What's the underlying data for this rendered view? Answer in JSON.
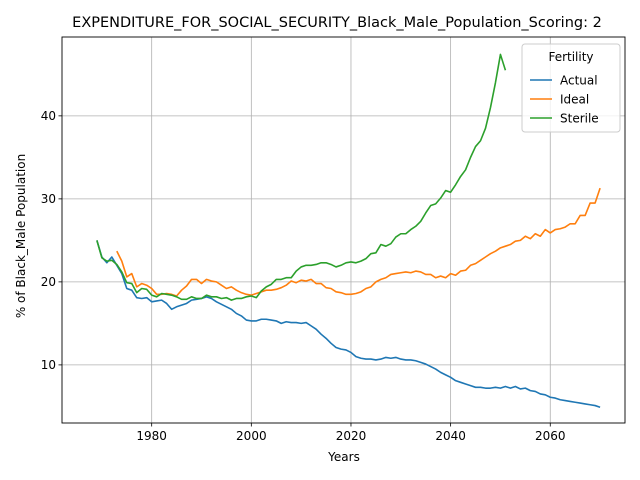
{
  "chart_data": {
    "type": "line",
    "title": "EXPENDITURE_FOR_SOCIAL_SECURITY_Black_Male_Population_Scoring: 2",
    "xlabel": "Years",
    "ylabel": "% of Black_Male Population",
    "xlim": [
      1962,
      2075
    ],
    "ylim": [
      3,
      49.5
    ],
    "xticks": [
      1980,
      2000,
      2020,
      2040,
      2060
    ],
    "yticks": [
      10,
      20,
      30,
      40
    ],
    "grid": true,
    "legend": {
      "title": "Fertility",
      "placement": "top-right"
    },
    "series": [
      {
        "name": "Actual",
        "color": "#1f77b4",
        "points": [
          [
            1969,
            25.0
          ],
          [
            1970,
            23.0
          ],
          [
            1971,
            22.3
          ],
          [
            1972,
            23.0
          ],
          [
            1973,
            22.0
          ],
          [
            1974,
            21.0
          ],
          [
            1975,
            19.2
          ],
          [
            1976,
            19.0
          ],
          [
            1977,
            18.1
          ],
          [
            1978,
            18.0
          ],
          [
            1979,
            18.1
          ],
          [
            1980,
            17.6
          ],
          [
            1981,
            17.7
          ],
          [
            1982,
            17.8
          ],
          [
            1983,
            17.4
          ],
          [
            1984,
            16.7
          ],
          [
            1985,
            17.0
          ],
          [
            1986,
            17.2
          ],
          [
            1987,
            17.4
          ],
          [
            1988,
            17.8
          ],
          [
            1989,
            17.9
          ],
          [
            1990,
            18.0
          ],
          [
            1991,
            18.2
          ],
          [
            1992,
            18.0
          ],
          [
            1993,
            17.6
          ],
          [
            1994,
            17.3
          ],
          [
            1995,
            17.0
          ],
          [
            1996,
            16.7
          ],
          [
            1997,
            16.2
          ],
          [
            1998,
            15.9
          ],
          [
            1999,
            15.4
          ],
          [
            2000,
            15.3
          ],
          [
            2001,
            15.3
          ],
          [
            2002,
            15.5
          ],
          [
            2003,
            15.5
          ],
          [
            2004,
            15.4
          ],
          [
            2005,
            15.3
          ],
          [
            2006,
            15.0
          ],
          [
            2007,
            15.2
          ],
          [
            2008,
            15.1
          ],
          [
            2009,
            15.1
          ],
          [
            2010,
            15.0
          ],
          [
            2011,
            15.1
          ],
          [
            2012,
            14.7
          ],
          [
            2013,
            14.3
          ],
          [
            2014,
            13.7
          ],
          [
            2015,
            13.2
          ],
          [
            2016,
            12.6
          ],
          [
            2017,
            12.1
          ],
          [
            2018,
            11.9
          ],
          [
            2019,
            11.8
          ],
          [
            2020,
            11.5
          ],
          [
            2021,
            11.0
          ],
          [
            2022,
            10.8
          ],
          [
            2023,
            10.7
          ],
          [
            2024,
            10.7
          ],
          [
            2025,
            10.6
          ],
          [
            2026,
            10.7
          ],
          [
            2027,
            10.9
          ],
          [
            2028,
            10.8
          ],
          [
            2029,
            10.9
          ],
          [
            2030,
            10.7
          ],
          [
            2031,
            10.6
          ],
          [
            2032,
            10.6
          ],
          [
            2033,
            10.5
          ],
          [
            2034,
            10.3
          ],
          [
            2035,
            10.1
          ],
          [
            2036,
            9.8
          ],
          [
            2037,
            9.5
          ],
          [
            2038,
            9.1
          ],
          [
            2039,
            8.8
          ],
          [
            2040,
            8.5
          ],
          [
            2041,
            8.1
          ],
          [
            2042,
            7.9
          ],
          [
            2043,
            7.7
          ],
          [
            2044,
            7.5
          ],
          [
            2045,
            7.3
          ],
          [
            2046,
            7.3
          ],
          [
            2047,
            7.2
          ],
          [
            2048,
            7.2
          ],
          [
            2049,
            7.3
          ],
          [
            2050,
            7.2
          ],
          [
            2051,
            7.4
          ],
          [
            2052,
            7.2
          ],
          [
            2053,
            7.4
          ],
          [
            2054,
            7.1
          ],
          [
            2055,
            7.2
          ],
          [
            2056,
            6.9
          ],
          [
            2057,
            6.8
          ],
          [
            2058,
            6.5
          ],
          [
            2059,
            6.4
          ],
          [
            2060,
            6.1
          ],
          [
            2061,
            6.0
          ],
          [
            2062,
            5.8
          ],
          [
            2063,
            5.7
          ],
          [
            2064,
            5.6
          ],
          [
            2065,
            5.5
          ],
          [
            2066,
            5.4
          ],
          [
            2067,
            5.3
          ],
          [
            2068,
            5.2
          ],
          [
            2069,
            5.1
          ],
          [
            2070,
            4.9
          ]
        ]
      },
      {
        "name": "Ideal",
        "color": "#ff7f0e",
        "points": [
          [
            1973,
            23.7
          ],
          [
            1974,
            22.5
          ],
          [
            1975,
            20.6
          ],
          [
            1976,
            21.0
          ],
          [
            1977,
            19.4
          ],
          [
            1978,
            19.8
          ],
          [
            1979,
            19.6
          ],
          [
            1980,
            19.2
          ],
          [
            1981,
            18.5
          ],
          [
            1982,
            18.5
          ],
          [
            1983,
            18.6
          ],
          [
            1984,
            18.5
          ],
          [
            1985,
            18.3
          ],
          [
            1986,
            19.0
          ],
          [
            1987,
            19.5
          ],
          [
            1988,
            20.3
          ],
          [
            1989,
            20.3
          ],
          [
            1990,
            19.8
          ],
          [
            1991,
            20.3
          ],
          [
            1992,
            20.1
          ],
          [
            1993,
            20.0
          ],
          [
            1994,
            19.6
          ],
          [
            1995,
            19.2
          ],
          [
            1996,
            19.4
          ],
          [
            1997,
            19.0
          ],
          [
            1998,
            18.7
          ],
          [
            1999,
            18.5
          ],
          [
            2000,
            18.4
          ],
          [
            2001,
            18.6
          ],
          [
            2002,
            18.8
          ],
          [
            2003,
            19.0
          ],
          [
            2004,
            19.0
          ],
          [
            2005,
            19.1
          ],
          [
            2006,
            19.3
          ],
          [
            2007,
            19.6
          ],
          [
            2008,
            20.1
          ],
          [
            2009,
            19.9
          ],
          [
            2010,
            20.2
          ],
          [
            2011,
            20.1
          ],
          [
            2012,
            20.3
          ],
          [
            2013,
            19.8
          ],
          [
            2014,
            19.8
          ],
          [
            2015,
            19.3
          ],
          [
            2016,
            19.2
          ],
          [
            2017,
            18.8
          ],
          [
            2018,
            18.7
          ],
          [
            2019,
            18.5
          ],
          [
            2020,
            18.5
          ],
          [
            2021,
            18.6
          ],
          [
            2022,
            18.8
          ],
          [
            2023,
            19.2
          ],
          [
            2024,
            19.4
          ],
          [
            2025,
            20.0
          ],
          [
            2026,
            20.3
          ],
          [
            2027,
            20.5
          ],
          [
            2028,
            20.9
          ],
          [
            2029,
            21.0
          ],
          [
            2030,
            21.1
          ],
          [
            2031,
            21.2
          ],
          [
            2032,
            21.1
          ],
          [
            2033,
            21.3
          ],
          [
            2034,
            21.2
          ],
          [
            2035,
            20.9
          ],
          [
            2036,
            20.9
          ],
          [
            2037,
            20.5
          ],
          [
            2038,
            20.7
          ],
          [
            2039,
            20.5
          ],
          [
            2040,
            21.0
          ],
          [
            2041,
            20.8
          ],
          [
            2042,
            21.3
          ],
          [
            2043,
            21.4
          ],
          [
            2044,
            22.0
          ],
          [
            2045,
            22.2
          ],
          [
            2046,
            22.6
          ],
          [
            2047,
            23.0
          ],
          [
            2048,
            23.4
          ],
          [
            2049,
            23.7
          ],
          [
            2050,
            24.1
          ],
          [
            2051,
            24.3
          ],
          [
            2052,
            24.5
          ],
          [
            2053,
            24.9
          ],
          [
            2054,
            25.0
          ],
          [
            2055,
            25.5
          ],
          [
            2056,
            25.2
          ],
          [
            2057,
            25.8
          ],
          [
            2058,
            25.5
          ],
          [
            2059,
            26.3
          ],
          [
            2060,
            25.9
          ],
          [
            2061,
            26.3
          ],
          [
            2062,
            26.4
          ],
          [
            2063,
            26.6
          ],
          [
            2064,
            27.0
          ],
          [
            2065,
            27.0
          ],
          [
            2066,
            28.0
          ],
          [
            2067,
            28.0
          ],
          [
            2068,
            29.5
          ],
          [
            2069,
            29.5
          ],
          [
            2070,
            31.3
          ]
        ]
      },
      {
        "name": "Sterile",
        "color": "#2ca02c",
        "points": [
          [
            1969,
            25.0
          ],
          [
            1970,
            22.9
          ],
          [
            1971,
            22.5
          ],
          [
            1972,
            22.6
          ],
          [
            1973,
            22.1
          ],
          [
            1974,
            21.2
          ],
          [
            1975,
            19.9
          ],
          [
            1976,
            19.8
          ],
          [
            1977,
            18.7
          ],
          [
            1978,
            19.2
          ],
          [
            1979,
            19.1
          ],
          [
            1980,
            18.4
          ],
          [
            1981,
            18.2
          ],
          [
            1982,
            18.6
          ],
          [
            1983,
            18.5
          ],
          [
            1984,
            18.4
          ],
          [
            1985,
            18.2
          ],
          [
            1986,
            17.9
          ],
          [
            1987,
            17.9
          ],
          [
            1988,
            18.2
          ],
          [
            1989,
            18.0
          ],
          [
            1990,
            18.0
          ],
          [
            1991,
            18.4
          ],
          [
            1992,
            18.2
          ],
          [
            1993,
            18.2
          ],
          [
            1994,
            18.0
          ],
          [
            1995,
            18.1
          ],
          [
            1996,
            17.8
          ],
          [
            1997,
            18.0
          ],
          [
            1998,
            18.0
          ],
          [
            1999,
            18.2
          ],
          [
            2000,
            18.3
          ],
          [
            2001,
            18.1
          ],
          [
            2002,
            18.9
          ],
          [
            2003,
            19.4
          ],
          [
            2004,
            19.7
          ],
          [
            2005,
            20.3
          ],
          [
            2006,
            20.3
          ],
          [
            2007,
            20.5
          ],
          [
            2008,
            20.5
          ],
          [
            2009,
            21.3
          ],
          [
            2010,
            21.8
          ],
          [
            2011,
            22.0
          ],
          [
            2012,
            22.0
          ],
          [
            2013,
            22.1
          ],
          [
            2014,
            22.3
          ],
          [
            2015,
            22.3
          ],
          [
            2016,
            22.1
          ],
          [
            2017,
            21.8
          ],
          [
            2018,
            22.0
          ],
          [
            2019,
            22.3
          ],
          [
            2020,
            22.4
          ],
          [
            2021,
            22.3
          ],
          [
            2022,
            22.5
          ],
          [
            2023,
            22.8
          ],
          [
            2024,
            23.4
          ],
          [
            2025,
            23.5
          ],
          [
            2026,
            24.5
          ],
          [
            2027,
            24.3
          ],
          [
            2028,
            24.6
          ],
          [
            2029,
            25.4
          ],
          [
            2030,
            25.8
          ],
          [
            2031,
            25.8
          ],
          [
            2032,
            26.3
          ],
          [
            2033,
            26.7
          ],
          [
            2034,
            27.3
          ],
          [
            2035,
            28.3
          ],
          [
            2036,
            29.2
          ],
          [
            2037,
            29.4
          ],
          [
            2038,
            30.1
          ],
          [
            2039,
            31.0
          ],
          [
            2040,
            30.8
          ],
          [
            2041,
            31.7
          ],
          [
            2042,
            32.7
          ],
          [
            2043,
            33.5
          ],
          [
            2044,
            35.0
          ],
          [
            2045,
            36.3
          ],
          [
            2046,
            37.0
          ],
          [
            2047,
            38.5
          ],
          [
            2048,
            41.0
          ],
          [
            2049,
            44.0
          ],
          [
            2050,
            47.4
          ],
          [
            2051,
            45.5
          ]
        ]
      }
    ]
  }
}
